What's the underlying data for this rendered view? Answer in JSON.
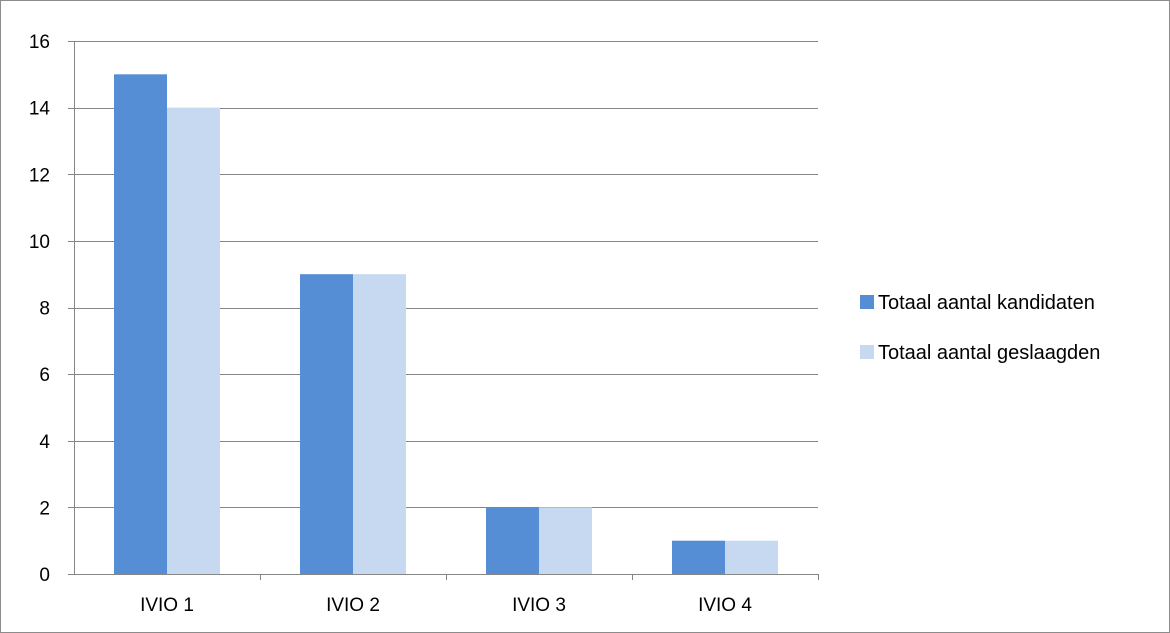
{
  "chart_data": {
    "type": "bar",
    "categories": [
      "IVIO 1",
      "IVIO 2",
      "IVIO 3",
      "IVIO 4"
    ],
    "series": [
      {
        "name": "Totaal aantal kandidaten",
        "values": [
          15,
          9,
          2,
          1
        ],
        "color": "#558ed5"
      },
      {
        "name": "Totaal aantal geslaagden",
        "values": [
          14,
          9,
          2,
          1
        ],
        "color": "#c6d9f1"
      }
    ],
    "title": "",
    "xlabel": "",
    "ylabel": "",
    "ylim": [
      0,
      16
    ],
    "yticks": [
      0,
      2,
      4,
      6,
      8,
      10,
      12,
      14,
      16
    ],
    "grid": true,
    "legend_position": "right",
    "gridline_color": "#868686",
    "axis_color": "#868686"
  }
}
